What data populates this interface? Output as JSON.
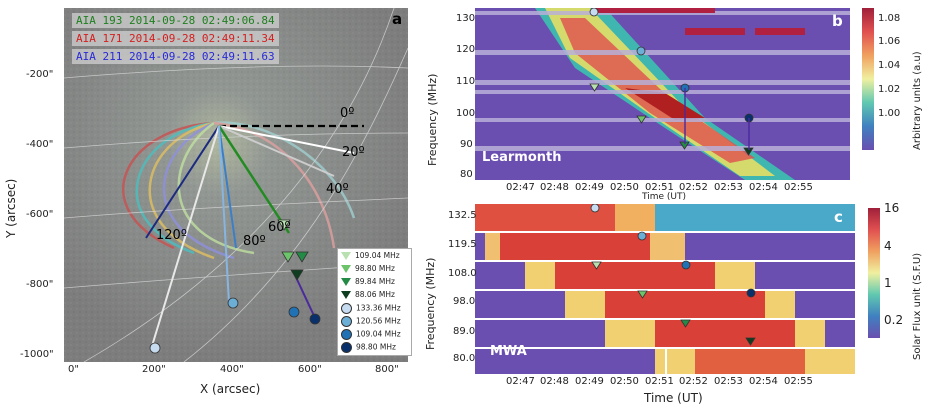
{
  "panel_a": {
    "letter": "a",
    "titles": [
      {
        "text": "AIA 193 2014-09-28 02:49:06.84",
        "color": "#1e7f1e"
      },
      {
        "text": "AIA 171 2014-09-28 02:49:11.34",
        "color": "#d42020"
      },
      {
        "text": "AIA 211 2014-09-28 02:49:11.63",
        "color": "#2a2ad8"
      }
    ],
    "xlabel": "X (arcsec)",
    "ylabel": "Y (arcsec)",
    "xticks": [
      "0\"",
      "200\"",
      "400\"",
      "600\"",
      "800\""
    ],
    "yticks": [
      "-200\"",
      "-400\"",
      "-600\"",
      "-800\"",
      "-1000\""
    ],
    "angles": [
      "0º",
      "20º",
      "40º",
      "60º",
      "80º",
      "120º"
    ],
    "legend": [
      {
        "label": "109.04 MHz",
        "shape": "triangle",
        "color": "#b8e0b0"
      },
      {
        "label": "98.80 MHz",
        "shape": "triangle",
        "color": "#6cc46a"
      },
      {
        "label": "89.84 MHz",
        "shape": "triangle",
        "color": "#238b45"
      },
      {
        "label": "88.06 MHz",
        "shape": "triangle",
        "color": "#0f3d1f"
      },
      {
        "label": "133.36 MHz",
        "shape": "circle",
        "color": "#c6dbef"
      },
      {
        "label": "120.56 MHz",
        "shape": "circle",
        "color": "#6baed6"
      },
      {
        "label": "109.04 MHz",
        "shape": "circle",
        "color": "#2171b5"
      },
      {
        "label": "98.80 MHz",
        "shape": "circle",
        "color": "#08306b"
      }
    ]
  },
  "panel_b": {
    "letter": "b",
    "label": "Learmonth",
    "ylabel": "Frequency (MHz)",
    "xlabel": "Time (UT)",
    "yticks": [
      "130",
      "120",
      "110",
      "100",
      "90",
      "80"
    ],
    "xticks": [
      "02:47",
      "02:48",
      "02:49",
      "02:50",
      "02:51",
      "02:52",
      "02:53",
      "02:54",
      "02:55"
    ],
    "cbar_label": "Arbitrary units (a.u)",
    "cbar_ticks": [
      "1.08",
      "1.06",
      "1.04",
      "1.02",
      "1.00"
    ]
  },
  "panel_c": {
    "letter": "c",
    "label": "MWA",
    "ylabel": "Frequency (MHz)",
    "xlabel": "Time (UT)",
    "yticks": [
      "132.5",
      "119.5",
      "108.0",
      "98.0",
      "89.0",
      "80.0"
    ],
    "xticks": [
      "02:47",
      "02:48",
      "02:49",
      "02:50",
      "02:51",
      "02:52",
      "02:53",
      "02:54",
      "02:55"
    ],
    "cbar_label": "Solar Flux  unit  (S.F.U)",
    "cbar_ticks": [
      "16",
      "4",
      "1",
      "0.2"
    ]
  },
  "colors": {
    "bg_purple": "#6a4fb0",
    "grid_band": "#b8b0d8",
    "triangle_green": "#6cc46a",
    "circle_blue": "#4a7fb8"
  }
}
